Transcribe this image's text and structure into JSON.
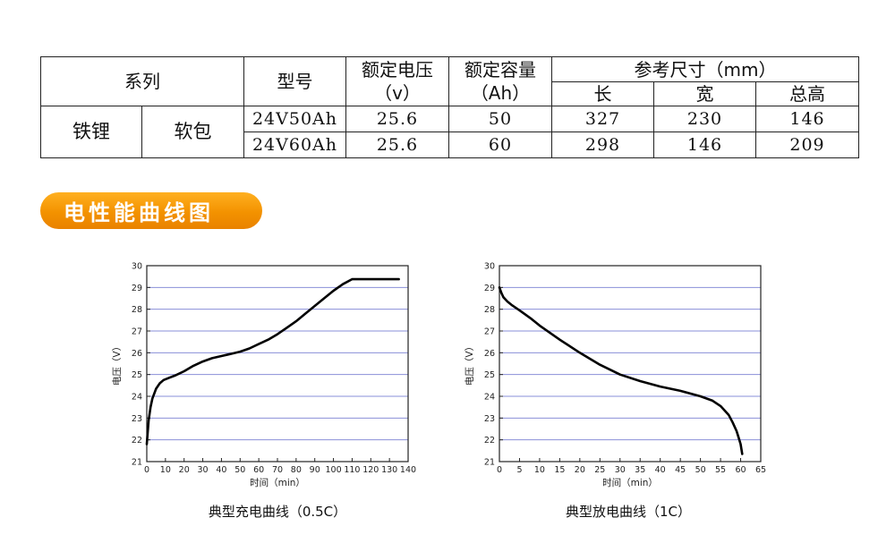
{
  "table": {
    "header": {
      "series": "系列",
      "model": "型号",
      "rated_voltage": "额定电压",
      "rated_voltage_unit": "（v）",
      "rated_capacity": "额定容量",
      "rated_capacity_unit": "（Ah）",
      "dimensions": "参考尺寸（mm）",
      "length": "长",
      "width": "宽",
      "height": "总高"
    },
    "series_type": "铁锂",
    "package": "软包",
    "rows": [
      {
        "model": "24V50Ah",
        "voltage": "25.6",
        "capacity": "50",
        "length": "327",
        "width": "230",
        "height": "146"
      },
      {
        "model": "24V60Ah",
        "voltage": "25.6",
        "capacity": "60",
        "length": "298",
        "width": "146",
        "height": "209"
      }
    ]
  },
  "banner": {
    "title": "电性能曲线图",
    "color": "#f39200"
  },
  "chart_data": [
    {
      "type": "line",
      "caption": "典型充电曲线（0.5C）",
      "xlabel": "时间（min）",
      "ylabel": "电压（V）",
      "xlim": [
        0,
        140
      ],
      "ylim": [
        21,
        30
      ],
      "xticks": [
        0,
        10,
        20,
        30,
        40,
        50,
        60,
        70,
        80,
        90,
        100,
        110,
        120,
        130,
        140
      ],
      "yticks": [
        21,
        22,
        23,
        24,
        25,
        26,
        27,
        28,
        29,
        30
      ],
      "grid": "horizontal",
      "line_color": "#000000",
      "grid_color": "#8a8fd8",
      "series": [
        {
          "x": [
            0,
            1,
            2,
            3,
            5,
            7,
            9,
            12,
            15,
            20,
            25,
            30,
            35,
            40,
            45,
            50,
            55,
            60,
            65,
            70,
            75,
            80,
            85,
            90,
            95,
            100,
            105,
            110,
            120,
            130,
            135
          ],
          "y": [
            21.8,
            22.9,
            23.5,
            23.9,
            24.35,
            24.6,
            24.75,
            24.85,
            24.95,
            25.15,
            25.4,
            25.6,
            25.75,
            25.85,
            25.95,
            26.05,
            26.2,
            26.4,
            26.6,
            26.85,
            27.15,
            27.45,
            27.8,
            28.15,
            28.5,
            28.85,
            29.15,
            29.38,
            29.38,
            29.38,
            29.38
          ]
        }
      ]
    },
    {
      "type": "line",
      "caption": "典型放电曲线（1C）",
      "xlabel": "时间（min）",
      "ylabel": "电压（V）",
      "xlim": [
        0,
        65
      ],
      "ylim": [
        21,
        30
      ],
      "xticks": [
        0,
        5,
        10,
        15,
        20,
        25,
        30,
        35,
        40,
        45,
        50,
        55,
        60,
        65
      ],
      "yticks": [
        21,
        22,
        23,
        24,
        25,
        26,
        27,
        28,
        29,
        30
      ],
      "grid": "horizontal",
      "line_color": "#000000",
      "grid_color": "#8a8fd8",
      "series": [
        {
          "x": [
            0,
            0.5,
            1,
            2,
            3,
            5,
            8,
            10,
            15,
            20,
            25,
            30,
            35,
            40,
            45,
            50,
            53,
            55,
            57,
            58,
            59,
            59.5,
            60,
            60.4
          ],
          "y": [
            29.0,
            28.75,
            28.55,
            28.35,
            28.2,
            27.95,
            27.55,
            27.25,
            26.6,
            26.0,
            25.45,
            25.0,
            24.7,
            24.45,
            24.25,
            24.0,
            23.8,
            23.55,
            23.15,
            22.8,
            22.4,
            22.1,
            21.8,
            21.35
          ]
        }
      ]
    }
  ]
}
